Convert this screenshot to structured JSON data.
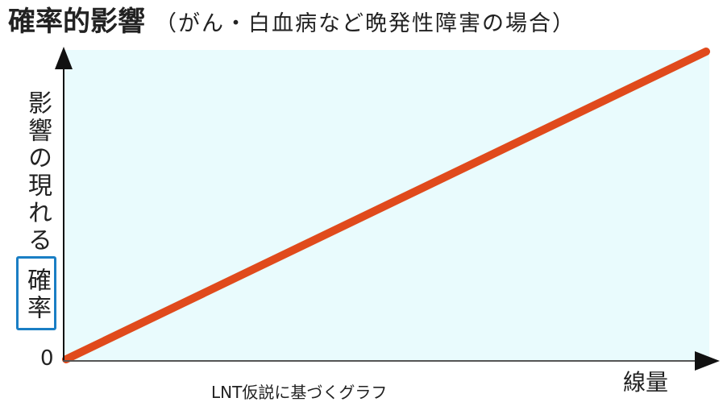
{
  "chart_data": {
    "type": "line",
    "title": "確率的影響",
    "subtitle": "（がん・白血病など晩発性障害の場合）",
    "xlabel": "線量",
    "ylabel": {
      "plain": "影響の現れる",
      "highlight": "確率"
    },
    "origin_label": "0",
    "caption": "LNT仮説に基づくグラフ",
    "x": [
      0,
      1
    ],
    "series": [
      {
        "values": [
          0,
          1
        ]
      }
    ],
    "xlim": [
      0,
      1
    ],
    "ylim": [
      0,
      1
    ],
    "grid": false
  },
  "colors": {
    "line": "#e04a1c",
    "plot_bg": "#e9fbfd",
    "highlight_border": "#1a7ec4",
    "axis": "#111111"
  }
}
